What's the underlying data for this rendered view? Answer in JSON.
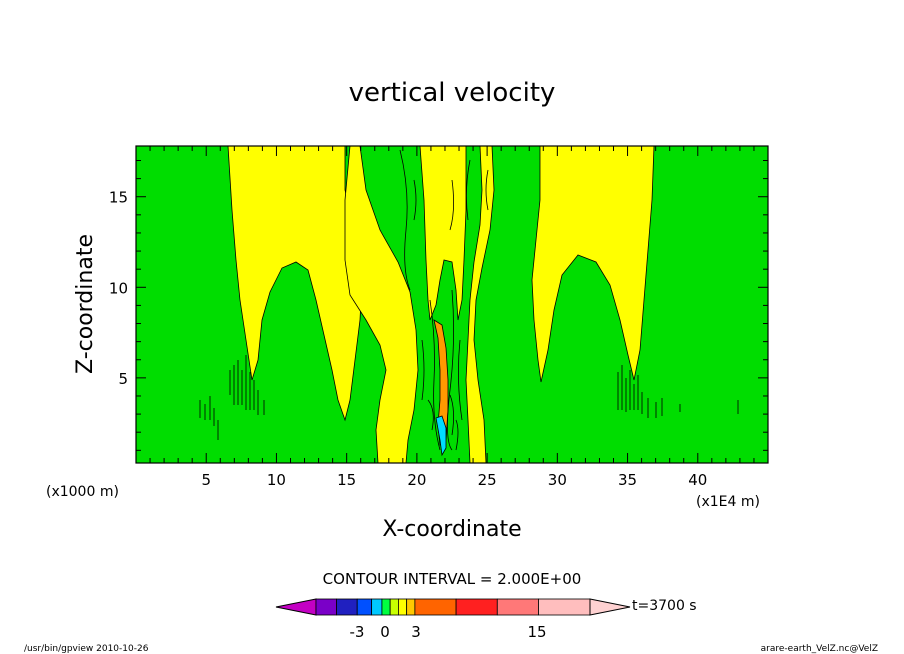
{
  "chart_data": {
    "type": "contour",
    "title": "vertical velocity",
    "xlabel": "X-coordinate",
    "ylabel": "Z-coordinate",
    "x_unit_left": "(x1000 m)",
    "x_unit_right": "(x1E4 m)",
    "xlim": [
      0,
      45
    ],
    "ylim": [
      0.3,
      17.8
    ],
    "x_ticks": [
      "5",
      "10",
      "15",
      "20",
      "25",
      "30",
      "35",
      "40"
    ],
    "x_tick_values": [
      5,
      10,
      15,
      20,
      25,
      30,
      35,
      40
    ],
    "y_ticks": [
      "5",
      "10",
      "15"
    ],
    "y_tick_values": [
      5,
      10,
      15
    ],
    "contour_interval_label": "CONTOUR INTERVAL = 2.000E+00",
    "time_label": "t=3700 s",
    "colorbar_labels": [
      "-3",
      "0",
      "3",
      "15"
    ],
    "colorbar_colors": [
      "#c300c3",
      "#7a00c8",
      "#2020c0",
      "#0050ff",
      "#00c8ff",
      "#00ff40",
      "#c8ff00",
      "#ffff00",
      "#ffc800",
      "#ff6400",
      "#ff2020",
      "#ff7878",
      "#ffbebe",
      "#ffd2d2"
    ],
    "colors": {
      "background_field": "#00dd00",
      "positive_weak": "#ffff00",
      "positive_mid": "#ff9900",
      "negative_weak": "#00ddff"
    }
  },
  "footer": {
    "left": "/usr/bin/gpview  2010-10-26",
    "right": "arare-earth_VelZ.nc@VelZ"
  }
}
